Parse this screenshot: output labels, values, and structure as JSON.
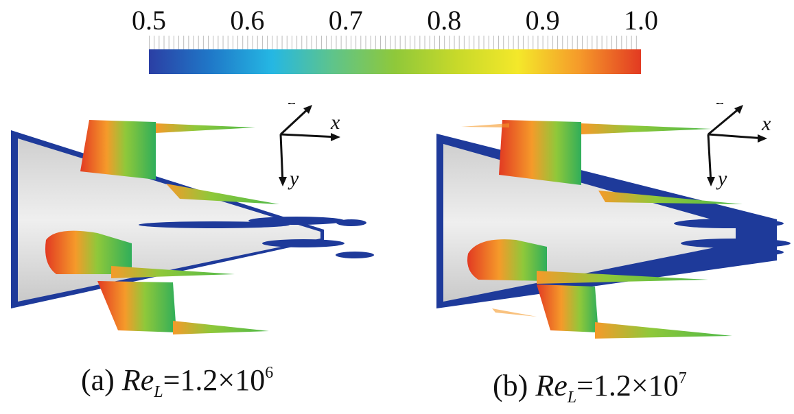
{
  "colorbar": {
    "ticks": [
      "0.5",
      "0.6",
      "0.7",
      "0.8",
      "0.9",
      "1.0"
    ],
    "min": 0.5,
    "max": 1.0,
    "colors": [
      "#2b3fa4",
      "#1f78c8",
      "#25b7e3",
      "#5fc48a",
      "#8fc83a",
      "#c7d92a",
      "#f4e82a",
      "#f59a2a",
      "#e23a22"
    ]
  },
  "axes": {
    "x": "x",
    "y": "y",
    "z": "z"
  },
  "panel_a": {
    "prefix": "(a) ",
    "re": "Re",
    "sub": "L",
    "eq": "=1.2×10",
    "exp": "6"
  },
  "panel_b": {
    "prefix": "(b) ",
    "re": "Re",
    "sub": "L",
    "eq": "=1.2×10",
    "exp": "7"
  }
}
